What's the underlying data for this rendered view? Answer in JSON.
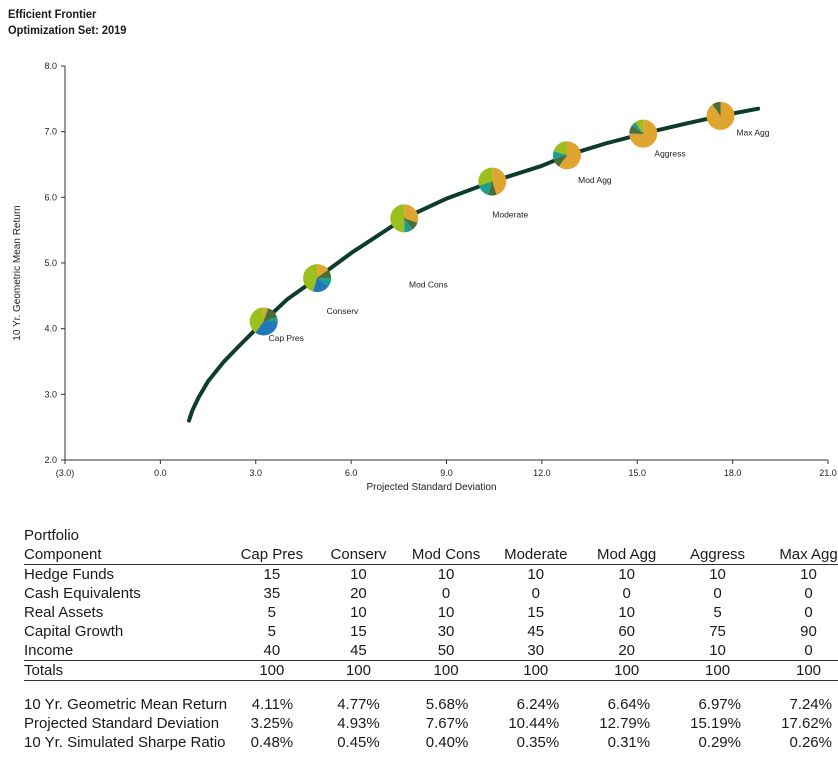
{
  "header": {
    "title": "Efficient Frontier",
    "subtitle": "Optimization Set: 2019"
  },
  "chart_data": {
    "type": "line",
    "title": "Efficient Frontier",
    "subtitle": "Optimization Set: 2019",
    "xlabel": "Projected Standard Deviation",
    "ylabel": "10 Yr. Geometric Mean Return",
    "xlim": [
      -3,
      21
    ],
    "ylim": [
      2,
      8
    ],
    "x_ticks": [
      "(3.0)",
      "0.0",
      "3.0",
      "6.0",
      "9.0",
      "12.0",
      "15.0",
      "18.0",
      "21.0"
    ],
    "x_tick_values": [
      -3,
      0,
      3,
      6,
      9,
      12,
      15,
      18,
      21
    ],
    "y_ticks": [
      "2.0",
      "3.0",
      "4.0",
      "5.0",
      "6.0",
      "7.0",
      "8.0"
    ],
    "y_tick_values": [
      2,
      3,
      4,
      5,
      6,
      7,
      8
    ],
    "negative_tick_color": "#d62728",
    "line_color": "#0d3b2e",
    "frontier": {
      "x": [
        0.9,
        1.0,
        1.2,
        1.5,
        2.0,
        2.5,
        3.25,
        4.0,
        4.93,
        6.0,
        7.67,
        9.0,
        10.44,
        12.0,
        12.79,
        14.0,
        15.19,
        16.5,
        17.62,
        18.8
      ],
      "y": [
        2.6,
        2.75,
        2.95,
        3.2,
        3.5,
        3.75,
        4.11,
        4.45,
        4.77,
        5.15,
        5.68,
        5.98,
        6.24,
        6.48,
        6.64,
        6.82,
        6.97,
        7.12,
        7.24,
        7.35
      ]
    },
    "portfolios": [
      {
        "label": "Cap Pres",
        "x": 3.25,
        "y": 4.11,
        "label_offset": [
          0.15,
          -0.3
        ]
      },
      {
        "label": "Conserv",
        "x": 4.93,
        "y": 4.77,
        "label_offset": [
          0.3,
          -0.55
        ]
      },
      {
        "label": "Mod Cons",
        "x": 7.67,
        "y": 5.68,
        "label_offset": [
          0.15,
          -1.05
        ]
      },
      {
        "label": "Moderate",
        "x": 10.44,
        "y": 6.24,
        "label_offset": [
          0.0,
          -0.55
        ]
      },
      {
        "label": "Mod Agg",
        "x": 12.79,
        "y": 6.64,
        "label_offset": [
          0.35,
          -0.42
        ]
      },
      {
        "label": "Aggress",
        "x": 15.19,
        "y": 6.97,
        "label_offset": [
          0.35,
          -0.35
        ]
      },
      {
        "label": "Max Agg",
        "x": 17.62,
        "y": 7.24,
        "label_offset": [
          0.5,
          -0.3
        ]
      }
    ],
    "component_colors": {
      "Hedge Funds": "#4a6e3a",
      "Cash Equivalents": "#2277b8",
      "Real Assets": "#1a9e8e",
      "Capital Growth": "#e0a530",
      "Income": "#9cbf1e"
    }
  },
  "table": {
    "header_line1": "Portfolio",
    "header_label": "Component",
    "columns": [
      "Cap Pres",
      "Conserv",
      "Mod Cons",
      "Moderate",
      "Mod Agg",
      "Aggress",
      "Max Agg"
    ],
    "rows": [
      {
        "label": "Hedge Funds",
        "values": [
          15,
          10,
          10,
          10,
          10,
          10,
          10
        ]
      },
      {
        "label": "Cash Equivalents",
        "values": [
          35,
          20,
          0,
          0,
          0,
          0,
          0
        ]
      },
      {
        "label": "Real Assets",
        "values": [
          5,
          10,
          10,
          15,
          10,
          5,
          0
        ]
      },
      {
        "label": "Capital Growth",
        "values": [
          5,
          15,
          30,
          45,
          60,
          75,
          90
        ]
      },
      {
        "label": "Income",
        "values": [
          40,
          45,
          50,
          30,
          20,
          10,
          0
        ]
      }
    ],
    "totals": {
      "label": "Totals",
      "values": [
        100,
        100,
        100,
        100,
        100,
        100,
        100
      ]
    },
    "stats": [
      {
        "label": "10 Yr. Geometric Mean Return",
        "values": [
          "4.11%",
          "4.77%",
          "5.68%",
          "6.24%",
          "6.64%",
          "6.97%",
          "7.24%"
        ]
      },
      {
        "label": "Projected Standard Deviation",
        "values": [
          "3.25%",
          "4.93%",
          "7.67%",
          "10.44%",
          "12.79%",
          "15.19%",
          "17.62%"
        ]
      },
      {
        "label": "10 Yr. Simulated Sharpe Ratio",
        "values": [
          "0.48%",
          "0.45%",
          "0.40%",
          "0.35%",
          "0.31%",
          "0.29%",
          "0.26%"
        ]
      }
    ]
  }
}
